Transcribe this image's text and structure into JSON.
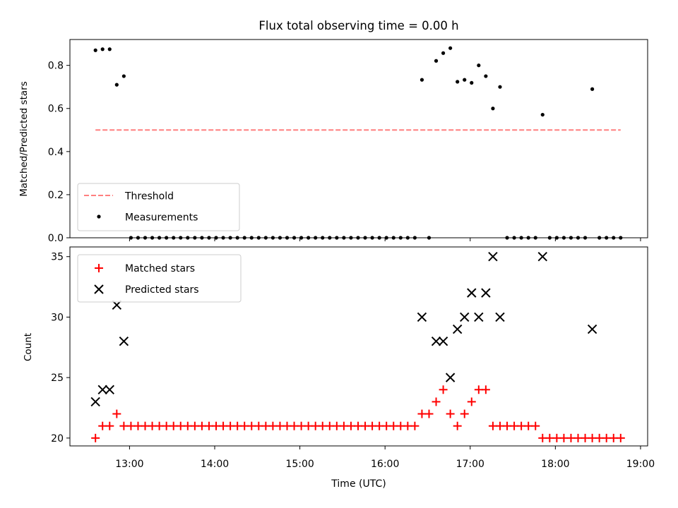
{
  "chart_data": [
    {
      "type": "scatter",
      "title": "Flux total observing time = 0.00 h",
      "xlabel": "",
      "ylabel": "Matched/Predicted stars",
      "xlim": [
        "12:18",
        "19:05"
      ],
      "ylim": [
        0,
        0.92
      ],
      "yticks": [
        0.0,
        0.2,
        0.4,
        0.6,
        0.8
      ],
      "ytick_labels": [
        "0.0",
        "0.2",
        "0.4",
        "0.6",
        "0.8"
      ],
      "grid": false,
      "legend_position": "lower-left",
      "legend": [
        {
          "label": "Threshold",
          "marker": "dashed-line",
          "color": "#ff7f7f"
        },
        {
          "label": "Measurements",
          "marker": "dot",
          "color": "#000000"
        }
      ],
      "threshold": {
        "name": "Threshold",
        "y": 0.5,
        "x_start": "12:36",
        "x_end": "18:46",
        "color": "#ff7f7f",
        "style": "dashed"
      },
      "series": [
        {
          "name": "Measurements",
          "marker": "dot",
          "color": "#000000",
          "points": [
            [
              "12:36",
              0.87
            ],
            [
              "12:41",
              0.875
            ],
            [
              "12:46",
              0.875
            ],
            [
              "12:51",
              0.71
            ],
            [
              "12:56",
              0.75
            ],
            [
              "13:01",
              0.0
            ],
            [
              "13:06",
              0.0
            ],
            [
              "13:11",
              0.0
            ],
            [
              "13:16",
              0.0
            ],
            [
              "13:21",
              0.0
            ],
            [
              "13:26",
              0.0
            ],
            [
              "13:31",
              0.0
            ],
            [
              "13:36",
              0.0
            ],
            [
              "13:41",
              0.0
            ],
            [
              "13:46",
              0.0
            ],
            [
              "13:51",
              0.0
            ],
            [
              "13:56",
              0.0
            ],
            [
              "14:01",
              0.0
            ],
            [
              "14:06",
              0.0
            ],
            [
              "14:11",
              0.0
            ],
            [
              "14:16",
              0.0
            ],
            [
              "14:21",
              0.0
            ],
            [
              "14:26",
              0.0
            ],
            [
              "14:31",
              0.0
            ],
            [
              "14:36",
              0.0
            ],
            [
              "14:41",
              0.0
            ],
            [
              "14:46",
              0.0
            ],
            [
              "14:51",
              0.0
            ],
            [
              "14:56",
              0.0
            ],
            [
              "15:01",
              0.0
            ],
            [
              "15:06",
              0.0
            ],
            [
              "15:11",
              0.0
            ],
            [
              "15:16",
              0.0
            ],
            [
              "15:21",
              0.0
            ],
            [
              "15:26",
              0.0
            ],
            [
              "15:31",
              0.0
            ],
            [
              "15:36",
              0.0
            ],
            [
              "15:41",
              0.0
            ],
            [
              "15:46",
              0.0
            ],
            [
              "15:51",
              0.0
            ],
            [
              "15:56",
              0.0
            ],
            [
              "16:01",
              0.0
            ],
            [
              "16:06",
              0.0
            ],
            [
              "16:11",
              0.0
            ],
            [
              "16:16",
              0.0
            ],
            [
              "16:21",
              0.0
            ],
            [
              "16:26",
              0.733
            ],
            [
              "16:31",
              0.0
            ],
            [
              "16:36",
              0.821
            ],
            [
              "16:41",
              0.857
            ],
            [
              "16:46",
              0.88
            ],
            [
              "16:51",
              0.724
            ],
            [
              "16:56",
              0.733
            ],
            [
              "17:01",
              0.719
            ],
            [
              "17:06",
              0.8
            ],
            [
              "17:11",
              0.75
            ],
            [
              "17:16",
              0.6
            ],
            [
              "17:21",
              0.7
            ],
            [
              "17:26",
              0.0
            ],
            [
              "17:31",
              0.0
            ],
            [
              "17:36",
              0.0
            ],
            [
              "17:41",
              0.0
            ],
            [
              "17:46",
              0.0
            ],
            [
              "17:51",
              0.571
            ],
            [
              "17:56",
              0.0
            ],
            [
              "18:01",
              0.0
            ],
            [
              "18:06",
              0.0
            ],
            [
              "18:11",
              0.0
            ],
            [
              "18:16",
              0.0
            ],
            [
              "18:21",
              0.0
            ],
            [
              "18:26",
              0.69
            ],
            [
              "18:31",
              0.0
            ],
            [
              "18:36",
              0.0
            ],
            [
              "18:41",
              0.0
            ],
            [
              "18:46",
              0.0
            ]
          ]
        }
      ]
    },
    {
      "type": "scatter",
      "title": "",
      "xlabel": "Time (UTC)",
      "ylabel": "Count",
      "xlim": [
        "12:18",
        "19:05"
      ],
      "xticks": [
        "13:00",
        "14:00",
        "15:00",
        "16:00",
        "17:00",
        "18:00",
        "19:00"
      ],
      "ylim": [
        19.35,
        35.8
      ],
      "yticks": [
        20,
        25,
        30,
        35
      ],
      "ytick_labels": [
        "20",
        "25",
        "30",
        "35"
      ],
      "grid": false,
      "legend_position": "upper-left",
      "legend": [
        {
          "label": "Matched stars",
          "marker": "plus",
          "color": "#ff0000"
        },
        {
          "label": "Predicted stars",
          "marker": "x",
          "color": "#000000"
        }
      ],
      "series": [
        {
          "name": "Matched stars",
          "marker": "plus",
          "color": "#ff0000",
          "points": [
            [
              "12:36",
              20
            ],
            [
              "12:41",
              21
            ],
            [
              "12:46",
              21
            ],
            [
              "12:51",
              22
            ],
            [
              "12:56",
              21
            ],
            [
              "13:01",
              21
            ],
            [
              "13:06",
              21
            ],
            [
              "13:11",
              21
            ],
            [
              "13:16",
              21
            ],
            [
              "13:21",
              21
            ],
            [
              "13:26",
              21
            ],
            [
              "13:31",
              21
            ],
            [
              "13:36",
              21
            ],
            [
              "13:41",
              21
            ],
            [
              "13:46",
              21
            ],
            [
              "13:51",
              21
            ],
            [
              "13:56",
              21
            ],
            [
              "14:01",
              21
            ],
            [
              "14:06",
              21
            ],
            [
              "14:11",
              21
            ],
            [
              "14:16",
              21
            ],
            [
              "14:21",
              21
            ],
            [
              "14:26",
              21
            ],
            [
              "14:31",
              21
            ],
            [
              "14:36",
              21
            ],
            [
              "14:41",
              21
            ],
            [
              "14:46",
              21
            ],
            [
              "14:51",
              21
            ],
            [
              "14:56",
              21
            ],
            [
              "15:01",
              21
            ],
            [
              "15:06",
              21
            ],
            [
              "15:11",
              21
            ],
            [
              "15:16",
              21
            ],
            [
              "15:21",
              21
            ],
            [
              "15:26",
              21
            ],
            [
              "15:31",
              21
            ],
            [
              "15:36",
              21
            ],
            [
              "15:41",
              21
            ],
            [
              "15:46",
              21
            ],
            [
              "15:51",
              21
            ],
            [
              "15:56",
              21
            ],
            [
              "16:01",
              21
            ],
            [
              "16:06",
              21
            ],
            [
              "16:11",
              21
            ],
            [
              "16:16",
              21
            ],
            [
              "16:21",
              21
            ],
            [
              "16:26",
              22
            ],
            [
              "16:31",
              22
            ],
            [
              "16:36",
              23
            ],
            [
              "16:41",
              24
            ],
            [
              "16:46",
              22
            ],
            [
              "16:51",
              21
            ],
            [
              "16:56",
              22
            ],
            [
              "17:01",
              23
            ],
            [
              "17:06",
              24
            ],
            [
              "17:11",
              24
            ],
            [
              "17:16",
              21
            ],
            [
              "17:21",
              21
            ],
            [
              "17:26",
              21
            ],
            [
              "17:31",
              21
            ],
            [
              "17:36",
              21
            ],
            [
              "17:41",
              21
            ],
            [
              "17:46",
              21
            ],
            [
              "17:51",
              20
            ],
            [
              "17:56",
              20
            ],
            [
              "18:01",
              20
            ],
            [
              "18:06",
              20
            ],
            [
              "18:11",
              20
            ],
            [
              "18:16",
              20
            ],
            [
              "18:21",
              20
            ],
            [
              "18:26",
              20
            ],
            [
              "18:31",
              20
            ],
            [
              "18:36",
              20
            ],
            [
              "18:41",
              20
            ],
            [
              "18:46",
              20
            ]
          ]
        },
        {
          "name": "Predicted stars",
          "marker": "x",
          "color": "#000000",
          "points": [
            [
              "12:36",
              23
            ],
            [
              "12:41",
              24
            ],
            [
              "12:46",
              24
            ],
            [
              "12:51",
              31
            ],
            [
              "12:56",
              28
            ],
            [
              "16:26",
              30
            ],
            [
              "16:36",
              28
            ],
            [
              "16:41",
              28
            ],
            [
              "16:46",
              25
            ],
            [
              "16:51",
              29
            ],
            [
              "16:56",
              30
            ],
            [
              "17:01",
              32
            ],
            [
              "17:06",
              30
            ],
            [
              "17:11",
              32
            ],
            [
              "17:16",
              35
            ],
            [
              "17:21",
              30
            ],
            [
              "17:51",
              35
            ],
            [
              "18:26",
              29
            ]
          ]
        }
      ]
    }
  ]
}
